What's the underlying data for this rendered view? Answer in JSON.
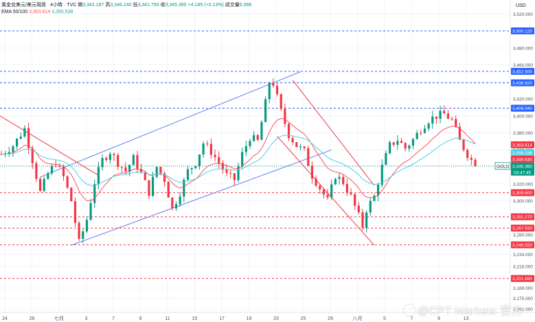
{
  "legend": {
    "symbol_info": "黃金兌美元/美元現貨 · 4小時 · TVC",
    "open_label": "開",
    "open": "3,342.187",
    "high_label": "高",
    "high": "3,346.240",
    "low_label": "低",
    "low": "3,341.750",
    "close_label": "收",
    "close": "3,345.360",
    "change": "+4.185 (+0.13%)",
    "volume_label": "成交量",
    "volume": "6.06K",
    "ema_label": "EMA 50/100",
    "ema50": "3,363.614",
    "ema100": "3,356.538"
  },
  "price_axis": {
    "unit": "USD",
    "ticks": [
      "3,520.000",
      "3,500.000",
      "3,480.000",
      "3,460.000",
      "3,440.000",
      "3,420.000",
      "3,400.000",
      "3,380.000",
      "3,360.000",
      "3,340.000",
      "3,320.000",
      "3,300.000",
      "3,280.000",
      "3,260.000",
      "3,234.000",
      "3,218.000",
      "3,189.000",
      "3,175.000",
      "3,161.000"
    ]
  },
  "time_axis": {
    "labels": [
      "24",
      "26",
      "七月",
      "3",
      "7",
      "9",
      "11",
      "15",
      "17",
      "19",
      "23",
      "25",
      "29",
      "八月",
      "5",
      "7",
      "9",
      "13"
    ]
  },
  "level_lines": [
    {
      "label": "3,500.120",
      "value": 3500.12,
      "color": "#2962ff"
    },
    {
      "label": "3,452.500",
      "value": 3452.5,
      "color": "#2962ff"
    },
    {
      "label": "3,438.920",
      "value": 3438.92,
      "color": "#2962ff"
    },
    {
      "label": "3,409.040",
      "value": 3409.04,
      "color": "#2962ff"
    },
    {
      "label": "3,309.600",
      "value": 3309.6,
      "color": "#f23645"
    },
    {
      "label": "3,281.270",
      "value": 3281.27,
      "color": "#f23645"
    },
    {
      "label": "3,267.930",
      "value": 3267.93,
      "color": "#f23645"
    },
    {
      "label": "3,246.550",
      "value": 3246.55,
      "color": "#f23645"
    },
    {
      "label": "3,201.680",
      "value": 3201.68,
      "color": "#f23645"
    }
  ],
  "price_tags": {
    "ema50": {
      "label": "3,363.614",
      "color": "#f23645"
    },
    "ema100": {
      "label": "3,356.538",
      "color": "#4dd0e1"
    },
    "resist": {
      "label": "3,349.630",
      "color": "#f23645"
    },
    "current_symbol": "GOLD",
    "current": {
      "label": "3,345.360",
      "color": "#089981"
    },
    "countdown": "03:47:45"
  },
  "watermark": "@CPT Markets 官方",
  "colors": {
    "up": "#089981",
    "down": "#f23645",
    "ema50": "#f7525f",
    "ema100": "#4dd0e1",
    "channel_up": "#5b7cf0",
    "channel_down": "#f23645"
  },
  "chart_data": {
    "type": "candlestick",
    "series": "GOLD 4H",
    "y_unit": "USD",
    "visible_range": [
      3161,
      3530
    ],
    "last_candle": {
      "open": 3342.187,
      "high": 3346.24,
      "low": 3341.75,
      "close": 3345.36
    },
    "ema50_last": 3363.614,
    "ema100_last": 3356.538,
    "horizontal_levels": [
      3500.12,
      3452.5,
      3438.92,
      3409.04,
      3309.6,
      3281.27,
      3267.93,
      3246.55,
      3201.68
    ],
    "swing_path": [
      [
        0,
        3355
      ],
      [
        3,
        3365
      ],
      [
        6,
        3385
      ],
      [
        8,
        3348
      ],
      [
        10,
        3310
      ],
      [
        12,
        3332
      ],
      [
        14,
        3345
      ],
      [
        16,
        3328
      ],
      [
        18,
        3300
      ],
      [
        20,
        3250
      ],
      [
        22,
        3278
      ],
      [
        24,
        3322
      ],
      [
        26,
        3348
      ],
      [
        28,
        3358
      ],
      [
        30,
        3345
      ],
      [
        32,
        3335
      ],
      [
        34,
        3350
      ],
      [
        36,
        3332
      ],
      [
        38,
        3310
      ],
      [
        40,
        3340
      ],
      [
        42,
        3325
      ],
      [
        44,
        3290
      ],
      [
        46,
        3310
      ],
      [
        48,
        3335
      ],
      [
        50,
        3345
      ],
      [
        52,
        3368
      ],
      [
        54,
        3358
      ],
      [
        56,
        3345
      ],
      [
        58,
        3330
      ],
      [
        60,
        3325
      ],
      [
        62,
        3355
      ],
      [
        64,
        3375
      ],
      [
        66,
        3370
      ],
      [
        68,
        3415
      ],
      [
        69,
        3440
      ],
      [
        70,
        3438
      ],
      [
        72,
        3405
      ],
      [
        74,
        3378
      ],
      [
        76,
        3365
      ],
      [
        78,
        3358
      ],
      [
        80,
        3330
      ],
      [
        82,
        3315
      ],
      [
        84,
        3300
      ],
      [
        86,
        3330
      ],
      [
        88,
        3322
      ],
      [
        90,
        3305
      ],
      [
        92,
        3282
      ],
      [
        93,
        3270
      ],
      [
        94,
        3290
      ],
      [
        96,
        3305
      ],
      [
        98,
        3340
      ],
      [
        100,
        3365
      ],
      [
        102,
        3372
      ],
      [
        104,
        3362
      ],
      [
        106,
        3372
      ],
      [
        108,
        3385
      ],
      [
        110,
        3395
      ],
      [
        112,
        3400
      ],
      [
        114,
        3402
      ],
      [
        116,
        3395
      ],
      [
        118,
        3370
      ],
      [
        120,
        3355
      ],
      [
        121,
        3348
      ],
      [
        122,
        3345
      ]
    ]
  }
}
